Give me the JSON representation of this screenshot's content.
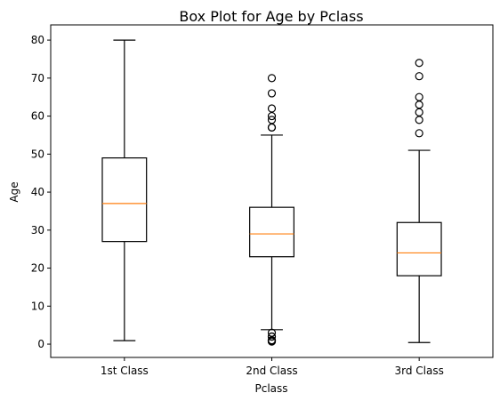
{
  "chart_data": {
    "type": "box",
    "title": "Box Plot for Age by Pclass",
    "xlabel": "Pclass",
    "ylabel": "Age",
    "categories": [
      "1st Class",
      "2nd Class",
      "3rd Class"
    ],
    "ylim": [
      -3.5,
      84
    ],
    "yticks": [
      0,
      10,
      20,
      30,
      40,
      50,
      60,
      70,
      80
    ],
    "grid": false,
    "colors": {
      "box": "#000000",
      "median": "#ff7f0e",
      "outlier_edge": "#000000"
    },
    "series": [
      {
        "category": "1st Class",
        "whisker_low": 0.92,
        "q1": 27,
        "median": 37,
        "q3": 49,
        "whisker_high": 80,
        "outliers": []
      },
      {
        "category": "2nd Class",
        "whisker_low": 3.8,
        "q1": 23,
        "median": 29,
        "q3": 36,
        "whisker_high": 55,
        "outliers": [
          0.67,
          0.83,
          0.83,
          1,
          1,
          2,
          2,
          3,
          57,
          57,
          59,
          60,
          62,
          66,
          70
        ]
      },
      {
        "category": "3rd Class",
        "whisker_low": 0.42,
        "q1": 18,
        "median": 24,
        "q3": 32,
        "whisker_high": 51,
        "outliers": [
          55.5,
          59,
          61,
          63,
          65,
          70.5,
          74
        ]
      }
    ]
  }
}
